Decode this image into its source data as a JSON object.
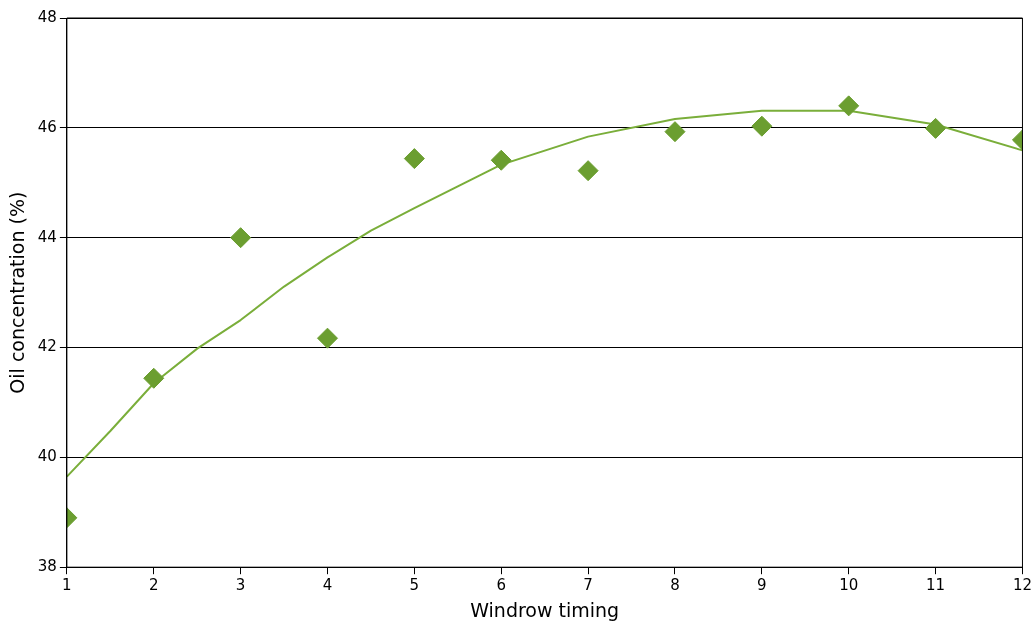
{
  "chart_data": {
    "type": "scatter",
    "xlabel": "Windrow timing",
    "ylabel": "Oil concentration (%)",
    "x": [
      1,
      2,
      3,
      4,
      5,
      6,
      7,
      8,
      9,
      10,
      11,
      12
    ],
    "series": [
      {
        "type": "scatter",
        "color": "#6b9e30",
        "marker": "diamond",
        "values": [
          38.9,
          41.44,
          44.0,
          42.17,
          45.44,
          45.41,
          45.22,
          45.93,
          46.03,
          46.4,
          45.99,
          45.78
        ]
      },
      {
        "type": "line",
        "color": "#7aae3a",
        "marker": "none",
        "line_style": "solid",
        "x": [
          1,
          1.5,
          2,
          2.5,
          3,
          3.5,
          4,
          4.5,
          5,
          6,
          7,
          8,
          9,
          10,
          11,
          12
        ],
        "values": [
          39.65,
          40.48,
          41.35,
          41.98,
          42.5,
          43.11,
          43.64,
          44.13,
          44.54,
          45.33,
          45.84,
          46.16,
          46.31,
          46.31,
          46.06,
          45.59
        ]
      }
    ],
    "xlim": [
      1,
      12
    ],
    "xticks": [
      1,
      2,
      3,
      4,
      5,
      6,
      7,
      8,
      9,
      10,
      11,
      12
    ],
    "ylim": [
      38,
      48
    ],
    "yticks": [
      38,
      40,
      42,
      44,
      46,
      48
    ],
    "grid": "y",
    "legend": false
  }
}
